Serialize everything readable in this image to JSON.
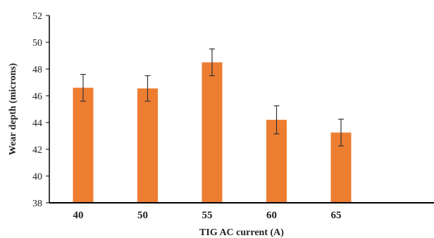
{
  "chart_data": {
    "type": "bar",
    "categories": [
      "40",
      "50",
      "55",
      "60",
      "65"
    ],
    "values": [
      46.6,
      46.55,
      48.5,
      44.2,
      43.25
    ],
    "error": [
      1.0,
      0.95,
      1.0,
      1.05,
      1.0
    ],
    "xlabel": "TIG AC current (A)",
    "ylabel": "Wear depth (microns)",
    "ylim": [
      38,
      52
    ],
    "yticks": [
      38,
      40,
      42,
      44,
      46,
      48,
      50,
      52
    ],
    "grid": false,
    "colors": {
      "bar": "#ED7D31",
      "axis": "#000000",
      "error_bar": "#333333"
    }
  }
}
